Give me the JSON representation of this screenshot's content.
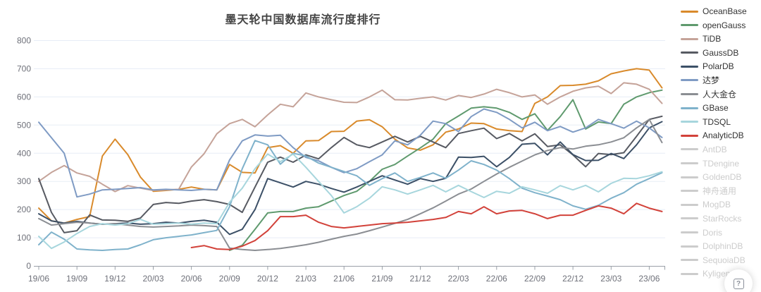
{
  "chart_data": {
    "type": "line",
    "title": "墨天轮中国数据库流行度排行",
    "legend_position": "right",
    "grid": true,
    "ylim": [
      0,
      800
    ],
    "y_interval": 100,
    "y_tick_labels": [
      "0",
      "100",
      "200",
      "300",
      "400",
      "500",
      "600",
      "700",
      "800"
    ],
    "x_tick_labels": [
      "19/06",
      "19/09",
      "19/12",
      "20/03",
      "20/06",
      "20/09",
      "20/12",
      "21/03",
      "21/06",
      "21/09",
      "21/12",
      "22/03",
      "22/06",
      "22/09",
      "22/12",
      "23/03",
      "23/06"
    ],
    "x": [
      "19/06",
      "19/07",
      "19/08",
      "19/09",
      "19/10",
      "19/11",
      "19/12",
      "20/01",
      "20/02",
      "20/03",
      "20/04",
      "20/05",
      "20/06",
      "20/07",
      "20/08",
      "20/09",
      "20/10",
      "20/11",
      "20/12",
      "21/01",
      "21/02",
      "21/03",
      "21/04",
      "21/05",
      "21/06",
      "21/07",
      "21/08",
      "21/09",
      "21/10",
      "21/11",
      "21/12",
      "22/01",
      "22/02",
      "22/03",
      "22/04",
      "22/05",
      "22/06",
      "22/07",
      "22/08",
      "22/09",
      "22/10",
      "22/11",
      "22/12",
      "23/01",
      "23/02",
      "23/03",
      "23/04",
      "23/05",
      "23/06",
      "23/07"
    ],
    "series": [
      {
        "name": "OceanBase",
        "color": "#d98a2b",
        "enabled": true,
        "data": [
          205,
          160,
          152,
          165,
          175,
          390,
          450,
          395,
          315,
          265,
          268,
          272,
          280,
          272,
          270,
          360,
          332,
          330,
          420,
          427,
          400,
          444,
          445,
          477,
          478,
          514,
          519,
          494,
          450,
          419,
          411,
          430,
          475,
          486,
          507,
          505,
          486,
          480,
          477,
          577,
          600,
          640,
          641,
          645,
          657,
          682,
          692,
          700,
          695,
          632
        ]
      },
      {
        "name": "openGauss",
        "color": "#5f9a6e",
        "enabled": true,
        "data": [
          null,
          null,
          null,
          null,
          null,
          null,
          null,
          null,
          null,
          null,
          null,
          null,
          null,
          null,
          null,
          55,
          73,
          130,
          188,
          193,
          193,
          205,
          210,
          230,
          250,
          265,
          300,
          343,
          360,
          390,
          419,
          450,
          505,
          532,
          560,
          565,
          560,
          545,
          520,
          540,
          481,
          530,
          590,
          486,
          511,
          505,
          574,
          600,
          615,
          624
        ]
      },
      {
        "name": "TiDB",
        "color": "#c5a399",
        "enabled": true,
        "data": [
          300,
          332,
          356,
          330,
          318,
          290,
          264,
          285,
          276,
          268,
          270,
          272,
          351,
          398,
          469,
          505,
          520,
          494,
          536,
          574,
          565,
          614,
          600,
          590,
          581,
          580,
          600,
          624,
          590,
          589,
          595,
          600,
          589,
          605,
          598,
          610,
          627,
          615,
          600,
          607,
          574,
          600,
          620,
          632,
          638,
          612,
          650,
          645,
          627,
          577
        ]
      },
      {
        "name": "GaussDB",
        "color": "#575a62",
        "enabled": true,
        "data": [
          310,
          190,
          118,
          125,
          181,
          163,
          162,
          158,
          170,
          218,
          225,
          222,
          230,
          235,
          228,
          218,
          190,
          280,
          368,
          386,
          368,
          394,
          380,
          420,
          456,
          430,
          420,
          440,
          460,
          440,
          460,
          440,
          420,
          470,
          480,
          489,
          452,
          470,
          444,
          469,
          424,
          430,
          394,
          352,
          399,
          395,
          402,
          460,
          520,
          531
        ]
      },
      {
        "name": "PolarDB",
        "color": "#3c5067",
        "enabled": true,
        "data": [
          185,
          160,
          152,
          158,
          152,
          148,
          150,
          152,
          148,
          150,
          155,
          152,
          158,
          162,
          155,
          112,
          130,
          200,
          310,
          295,
          280,
          300,
          290,
          275,
          262,
          280,
          300,
          320,
          305,
          290,
          310,
          300,
          311,
          386,
          385,
          389,
          352,
          385,
          432,
          435,
          394,
          440,
          395,
          374,
          375,
          399,
          381,
          430,
          490,
          512
        ]
      },
      {
        "name": "达梦",
        "color": "#7f9bc4",
        "enabled": true,
        "data": [
          510,
          455,
          400,
          245,
          255,
          270,
          272,
          275,
          278,
          270,
          272,
          270,
          268,
          272,
          270,
          376,
          444,
          465,
          461,
          464,
          420,
          385,
          373,
          350,
          331,
          345,
          370,
          394,
          444,
          430,
          464,
          514,
          505,
          477,
          530,
          557,
          545,
          520,
          490,
          510,
          480,
          495,
          475,
          490,
          520,
          505,
          489,
          514,
          490,
          456
        ]
      },
      {
        "name": "人大金仓",
        "color": "#8b8e93",
        "enabled": true,
        "data": [
          168,
          145,
          150,
          155,
          152,
          148,
          150,
          145,
          140,
          138,
          140,
          142,
          145,
          143,
          140,
          63,
          58,
          55,
          58,
          62,
          68,
          75,
          84,
          95,
          105,
          113,
          125,
          138,
          151,
          165,
          185,
          206,
          230,
          255,
          273,
          300,
          326,
          350,
          372,
          394,
          410,
          420,
          415,
          425,
          430,
          440,
          455,
          490,
          520,
          438
        ]
      },
      {
        "name": "GBase",
        "color": "#7fb2cb",
        "enabled": true,
        "data": [
          75,
          120,
          95,
          60,
          57,
          55,
          58,
          60,
          75,
          93,
          100,
          105,
          110,
          118,
          126,
          210,
          345,
          445,
          430,
          361,
          400,
          390,
          365,
          350,
          335,
          320,
          286,
          310,
          330,
          300,
          314,
          330,
          311,
          340,
          373,
          360,
          340,
          310,
          276,
          260,
          248,
          235,
          213,
          201,
          215,
          240,
          260,
          290,
          310,
          331
        ]
      },
      {
        "name": "TDSQL",
        "color": "#a7d6dd",
        "enabled": true,
        "data": [
          105,
          62,
          85,
          115,
          140,
          150,
          145,
          150,
          165,
          148,
          150,
          152,
          148,
          152,
          150,
          226,
          276,
          345,
          397,
          370,
          397,
          350,
          300,
          250,
          188,
          210,
          240,
          281,
          270,
          255,
          270,
          286,
          263,
          286,
          264,
          243,
          265,
          258,
          281,
          270,
          258,
          285,
          270,
          286,
          263,
          293,
          311,
          310,
          320,
          334
        ]
      },
      {
        "name": "AnalyticDB",
        "color": "#d2423a",
        "enabled": true,
        "data": [
          null,
          null,
          null,
          null,
          null,
          null,
          null,
          null,
          null,
          null,
          null,
          null,
          65,
          72,
          60,
          58,
          70,
          90,
          125,
          175,
          175,
          180,
          155,
          140,
          135,
          140,
          145,
          150,
          152,
          155,
          160,
          165,
          172,
          193,
          185,
          210,
          185,
          195,
          197,
          185,
          168,
          180,
          180,
          197,
          213,
          205,
          185,
          222,
          205,
          193
        ]
      },
      {
        "name": "AntDB",
        "color": "#cccccc",
        "enabled": false,
        "data": []
      },
      {
        "name": "TDengine",
        "color": "#cccccc",
        "enabled": false,
        "data": []
      },
      {
        "name": "GoldenDB",
        "color": "#cccccc",
        "enabled": false,
        "data": []
      },
      {
        "name": "神舟通用",
        "color": "#cccccc",
        "enabled": false,
        "data": []
      },
      {
        "name": "MogDB",
        "color": "#cccccc",
        "enabled": false,
        "data": []
      },
      {
        "name": "StarRocks",
        "color": "#cccccc",
        "enabled": false,
        "data": []
      },
      {
        "name": "Doris",
        "color": "#cccccc",
        "enabled": false,
        "data": []
      },
      {
        "name": "DolphinDB",
        "color": "#cccccc",
        "enabled": false,
        "data": []
      },
      {
        "name": "SequoiaDB",
        "color": "#cccccc",
        "enabled": false,
        "data": []
      },
      {
        "name": "Kyligence",
        "color": "#cccccc",
        "enabled": false,
        "data": []
      }
    ],
    "style": {
      "grid_color": "#e7edf6",
      "axis_color": "#9aa0a8",
      "axis_label_color": "#6e7079",
      "legend_active_color": "#333333",
      "legend_disabled_color": "#cccccc",
      "title_color": "#454545"
    }
  },
  "help": {
    "icon_label": "?"
  }
}
